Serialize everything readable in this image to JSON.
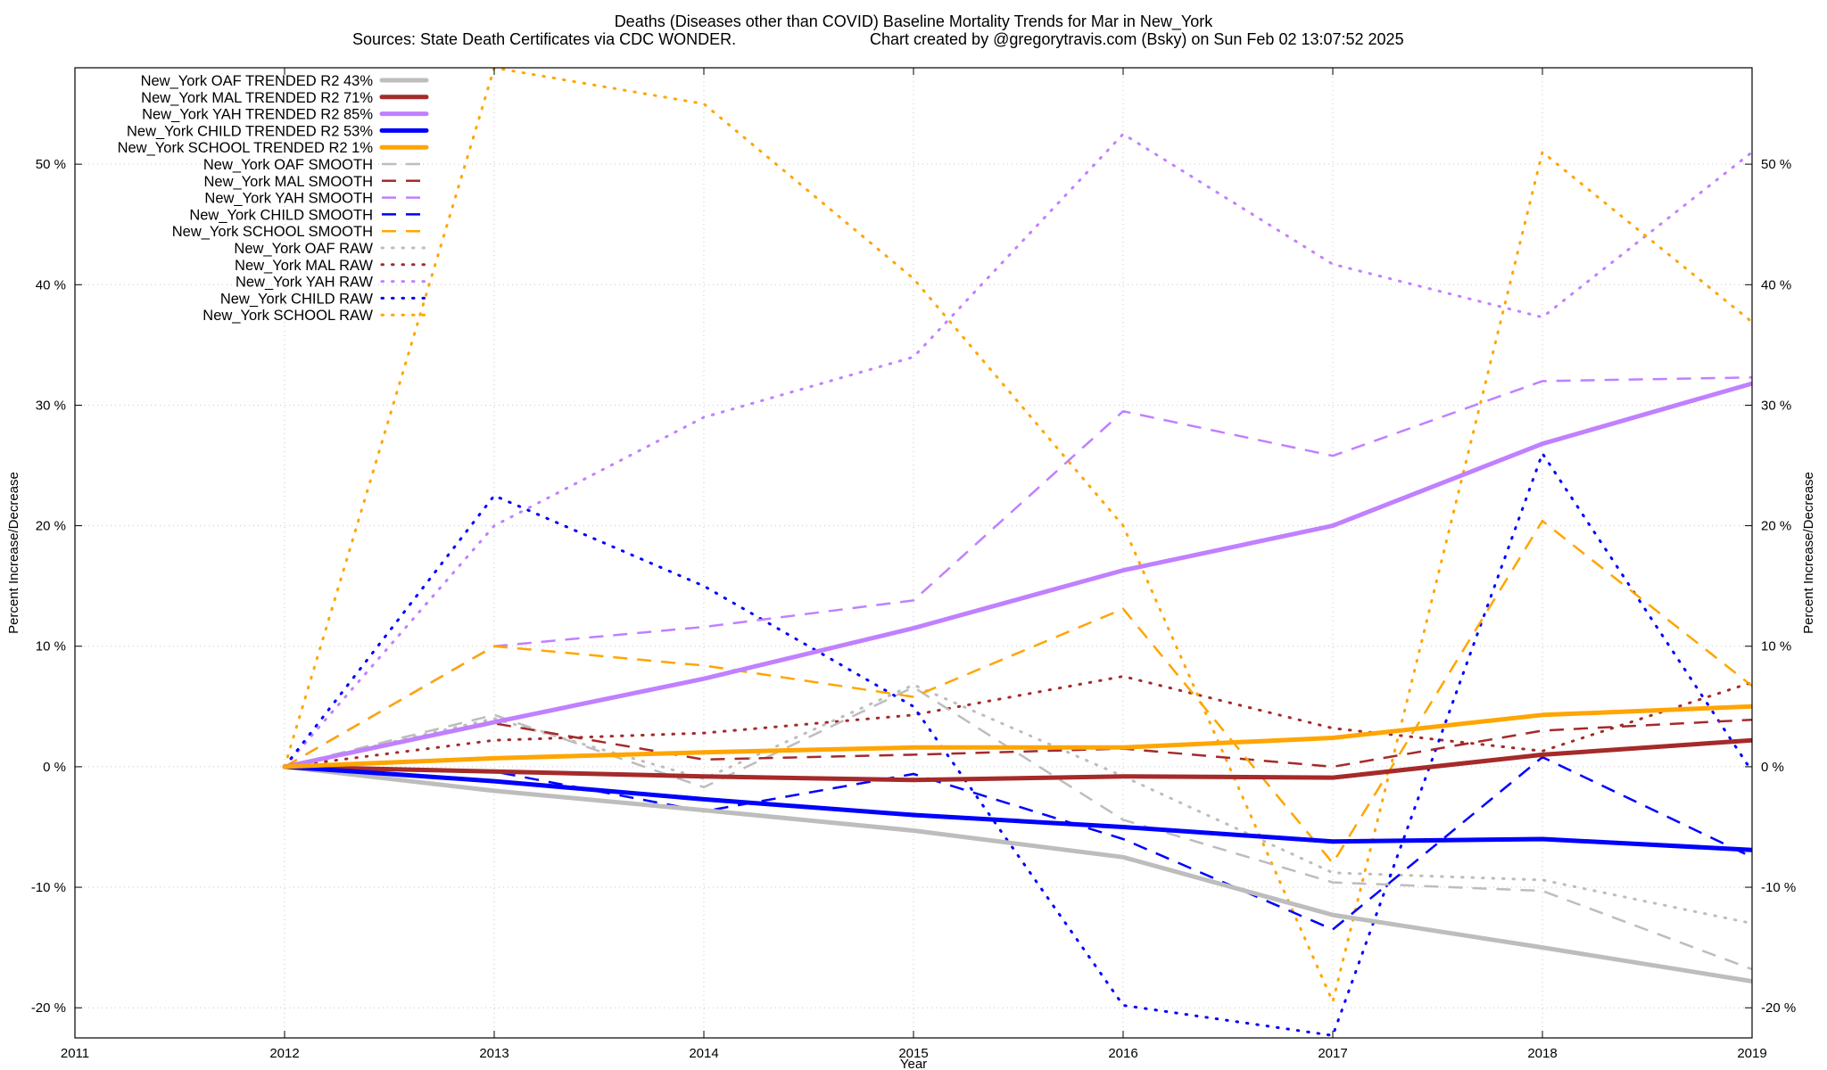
{
  "chart_data": {
    "type": "line",
    "title": "Deaths (Diseases other than COVID)  Baseline Mortality Trends for Mar in New_York",
    "subtitle_left": "Sources: State Death Certificates via CDC WONDER.",
    "subtitle_right": "Chart created by @gregorytravis.com (Bsky) on Sun Feb 02 13:07:52 2025",
    "xlabel": "Year",
    "ylabel": "Percent Increase/Decrease",
    "ylabel_right": "Percent Increase/Decrease",
    "xlim": [
      2011,
      2019
    ],
    "ylim": [
      -22.5,
      58
    ],
    "x_ticks": [
      "2011",
      "2012",
      "2013",
      "2014",
      "2015",
      "2016",
      "2017",
      "2018",
      "2019"
    ],
    "y_ticks": [
      "-20 %",
      "-10 %",
      "0 %",
      "10 %",
      "20 %",
      "30 %",
      "40 %",
      "50 %"
    ],
    "y_tick_values": [
      -20,
      -10,
      0,
      10,
      20,
      30,
      40,
      50
    ],
    "grid": true,
    "legend_position": "top-left",
    "x": [
      2012,
      2013,
      2014,
      2015,
      2016,
      2017,
      2018,
      2019
    ],
    "series": [
      {
        "name": "New_York OAF TRENDED R2  43%",
        "color": "#bdbdbd",
        "style": "solid",
        "values": [
          0,
          -2.0,
          -3.6,
          -5.3,
          -7.5,
          -12.3,
          -15.0,
          -17.8
        ]
      },
      {
        "name": "New_York MAL TRENDED R2  71%",
        "color": "#a52a2a",
        "style": "solid",
        "values": [
          0,
          -0.4,
          -0.8,
          -1.1,
          -0.8,
          -0.9,
          1.0,
          2.2
        ]
      },
      {
        "name": "New_York YAH TRENDED R2  85%",
        "color": "#c080ff",
        "style": "solid",
        "values": [
          0,
          3.7,
          7.3,
          11.5,
          16.3,
          20.0,
          26.8,
          31.8
        ]
      },
      {
        "name": "New_York CHILD TRENDED R2  53%",
        "color": "#0000ff",
        "style": "solid",
        "values": [
          0,
          -1.2,
          -2.7,
          -4.0,
          -5.0,
          -6.2,
          -6.0,
          -6.9
        ]
      },
      {
        "name": "New_York SCHOOL TRENDED R2   1%",
        "color": "#ffa500",
        "style": "solid",
        "values": [
          0,
          0.7,
          1.2,
          1.6,
          1.6,
          2.4,
          4.3,
          5.0
        ]
      },
      {
        "name": "New_York OAF SMOOTH",
        "color": "#bdbdbd",
        "style": "dashed",
        "values": [
          0,
          4.3,
          -1.7,
          6.6,
          -4.4,
          -9.6,
          -10.3,
          -16.8
        ]
      },
      {
        "name": "New_York MAL SMOOTH",
        "color": "#a52a2a",
        "style": "dashed",
        "values": [
          0,
          3.6,
          0.6,
          1.0,
          1.5,
          0.0,
          3.0,
          3.9
        ]
      },
      {
        "name": "New_York YAH SMOOTH",
        "color": "#c080ff",
        "style": "dashed",
        "values": [
          0,
          10.0,
          11.6,
          13.8,
          29.5,
          25.8,
          32.0,
          32.3
        ]
      },
      {
        "name": "New_York CHILD SMOOTH",
        "color": "#0000ff",
        "style": "dashed",
        "values": [
          0,
          -0.4,
          -3.7,
          -0.6,
          -6.0,
          -13.5,
          0.8,
          -7.5
        ]
      },
      {
        "name": "New_York SCHOOL SMOOTH",
        "color": "#ffa500",
        "style": "dashed",
        "values": [
          0,
          10.0,
          8.4,
          5.8,
          13.1,
          -8.0,
          20.4,
          6.7
        ]
      },
      {
        "name": "New_York OAF RAW",
        "color": "#bdbdbd",
        "style": "dotted",
        "values": [
          0,
          4.0,
          -1.0,
          6.8,
          -0.8,
          -8.8,
          -9.4,
          -13.0
        ]
      },
      {
        "name": "New_York MAL RAW",
        "color": "#a52a2a",
        "style": "dotted",
        "values": [
          0,
          2.2,
          2.8,
          4.3,
          7.5,
          3.2,
          1.3,
          7.0
        ]
      },
      {
        "name": "New_York YAH RAW",
        "color": "#c080ff",
        "style": "dotted",
        "values": [
          0,
          20.0,
          29.0,
          34.0,
          52.5,
          41.7,
          37.3,
          51.0
        ]
      },
      {
        "name": "New_York CHILD RAW",
        "color": "#0000ff",
        "style": "dotted",
        "values": [
          0,
          22.5,
          15.0,
          5.0,
          -19.8,
          -22.3,
          26.0,
          -0.4
        ]
      },
      {
        "name": "New_York SCHOOL RAW",
        "color": "#ffa500",
        "style": "dotted",
        "values": [
          0,
          58.0,
          55.0,
          40.5,
          20.0,
          -19.5,
          51.0,
          36.9
        ]
      }
    ]
  }
}
